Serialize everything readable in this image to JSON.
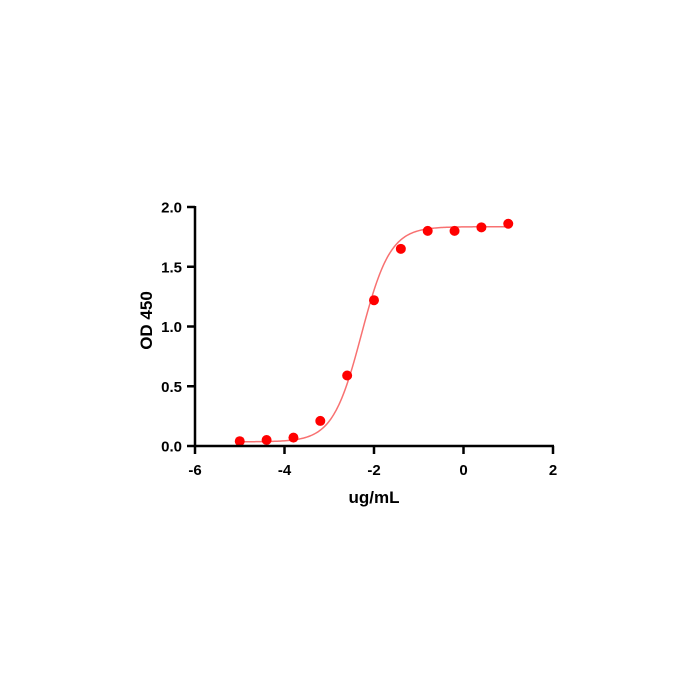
{
  "chart_data": {
    "type": "scatter",
    "title": "",
    "xlabel": "ug/mL",
    "ylabel": "OD 450",
    "xlim": [
      -6,
      2
    ],
    "ylim": [
      0,
      2
    ],
    "xticks": [
      -6,
      -4,
      -2,
      0,
      2
    ],
    "yticks": [
      0.0,
      0.5,
      1.0,
      1.5,
      2.0
    ],
    "xtick_labels": [
      "-6",
      "-4",
      "-2",
      "0",
      "2"
    ],
    "ytick_labels": [
      "0.0",
      "0.5",
      "1.0",
      "1.5",
      "2.0"
    ],
    "grid": false,
    "legend": "none",
    "series": [
      {
        "x": [
          -5.0,
          -4.4,
          -3.8,
          -3.2,
          -2.6,
          -2.0,
          -1.4,
          -0.8,
          -0.2,
          0.4,
          1.0
        ],
        "y": [
          0.04,
          0.05,
          0.07,
          0.21,
          0.59,
          1.22,
          1.65,
          1.8,
          1.8,
          1.83,
          1.86
        ],
        "color": "#ff0000",
        "fit": {
          "type": "4PL",
          "bottom": 0.035,
          "top": 1.835,
          "log_ec50": -2.28,
          "hill": 1.35,
          "color": "#f87171"
        }
      }
    ]
  }
}
